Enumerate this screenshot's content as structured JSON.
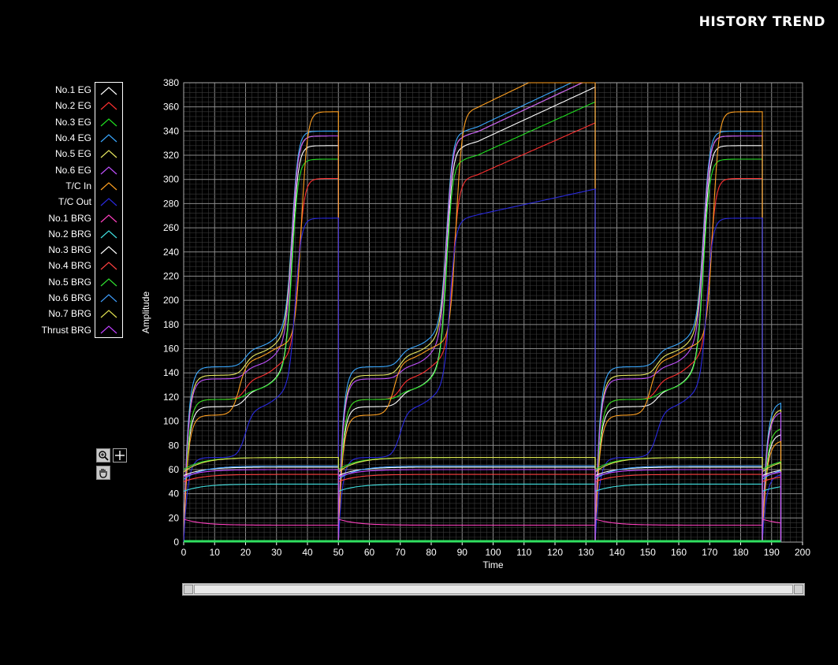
{
  "title": "HISTORY TREND",
  "chart_data": {
    "type": "line",
    "xlabel": "Time",
    "ylabel": "Amplitude",
    "xlim": [
      0,
      200
    ],
    "ylim": [
      0,
      380
    ],
    "xticks": [
      0,
      10,
      20,
      30,
      40,
      50,
      60,
      70,
      80,
      90,
      100,
      110,
      120,
      130,
      140,
      150,
      160,
      170,
      180,
      190,
      200
    ],
    "yticks": [
      0,
      20,
      40,
      60,
      80,
      100,
      120,
      140,
      160,
      180,
      200,
      220,
      240,
      260,
      280,
      300,
      320,
      340,
      360,
      380
    ],
    "grid": true,
    "legend_position": "left",
    "cycle_starts": [
      0,
      50,
      133,
      187
    ],
    "series": [
      {
        "name": "No.1 EG",
        "color": "#ffffff",
        "group": "eg",
        "levels": [
          112,
          125,
          160,
          342
        ],
        "step_b": 20,
        "step_c": 35
      },
      {
        "name": "No.2 EG",
        "color": "#ff3030",
        "group": "eg",
        "levels": [
          118,
          135,
          168,
          314
        ],
        "step_b": 20,
        "step_c": 37
      },
      {
        "name": "No.3 EG",
        "color": "#20e020",
        "group": "eg",
        "levels": [
          118,
          125,
          158,
          330
        ],
        "step_b": 20,
        "step_c": 35
      },
      {
        "name": "No.4 EG",
        "color": "#3aa8ff",
        "group": "eg",
        "levels": [
          145,
          160,
          190,
          352
        ],
        "step_b": 20,
        "step_c": 35
      },
      {
        "name": "No.5 EG",
        "color": "#e8e860",
        "group": "eg",
        "levels": [
          138,
          155,
          185,
          348
        ],
        "step_b": 20,
        "step_c": 35
      },
      {
        "name": "No.6 EG",
        "color": "#c050ff",
        "group": "eg",
        "levels": [
          135,
          145,
          180,
          350
        ],
        "step_b": 20,
        "step_c": 35
      },
      {
        "name": "T/C In",
        "color": "#ffa020",
        "group": "eg",
        "levels": [
          105,
          150,
          175,
          366
        ],
        "step_b": 18,
        "step_c": 38
      },
      {
        "name": "T/C Out",
        "color": "#2a2ae0",
        "group": "tc",
        "levels": [
          70,
          110,
          140,
          280
        ],
        "step_b": 20,
        "step_c": 36
      },
      {
        "name": "No.1 BRG",
        "color": "#ff40c0",
        "group": "brg",
        "levels": [
          19,
          14
        ]
      },
      {
        "name": "No.2 BRG",
        "color": "#40e0e0",
        "group": "brg",
        "levels": [
          42,
          48
        ]
      },
      {
        "name": "No.3 BRG",
        "color": "#ffffff",
        "group": "brg",
        "levels": [
          55,
          62
        ]
      },
      {
        "name": "No.4 BRG",
        "color": "#ff4040",
        "group": "brg",
        "levels": [
          50,
          56
        ]
      },
      {
        "name": "No.5 BRG",
        "color": "#30e030",
        "group": "brg",
        "levels": [
          60,
          70
        ]
      },
      {
        "name": "No.6 BRG",
        "color": "#40a0ff",
        "group": "brg",
        "levels": [
          52,
          63
        ]
      },
      {
        "name": "No.7 BRG",
        "color": "#e0e050",
        "group": "brg",
        "levels": [
          58,
          70
        ]
      },
      {
        "name": "Thrust BRG",
        "color": "#c040ff",
        "group": "brg",
        "levels": [
          54,
          60
        ]
      }
    ]
  },
  "tools": {
    "zoom_icon": "zoom-in-icon",
    "plus_icon": "crosshair-icon",
    "pan_icon": "hand-icon"
  }
}
